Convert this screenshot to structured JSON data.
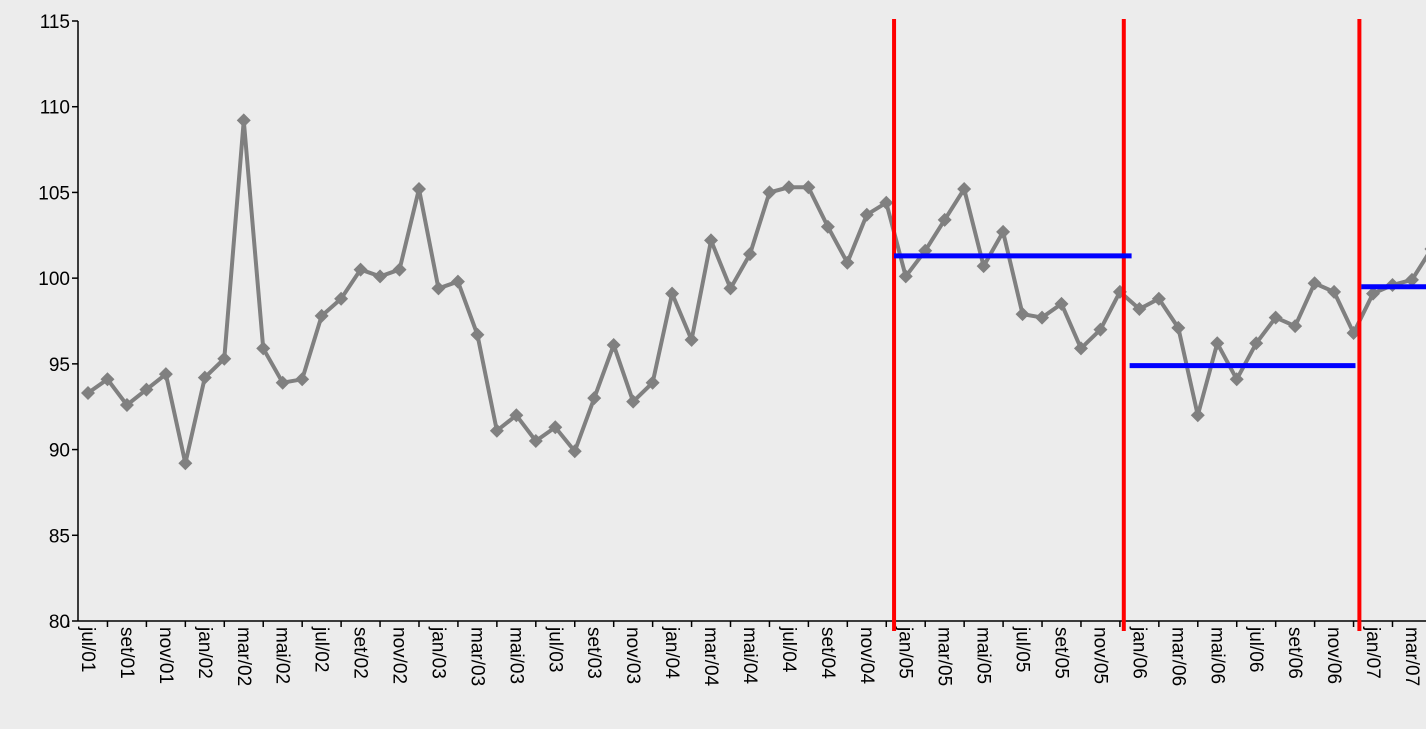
{
  "chart_data": {
    "type": "line",
    "categories": [
      "jul/01",
      null,
      "set/01",
      null,
      "nov/01",
      null,
      "jan/02",
      null,
      "mar/02",
      null,
      "mai/02",
      null,
      "jul/02",
      null,
      "set/02",
      null,
      "nov/02",
      null,
      "jan/03",
      null,
      "mar/03",
      null,
      "mai/03",
      null,
      "jul/03",
      null,
      "set/03",
      null,
      "nov/03",
      null,
      "jan/04",
      null,
      "mar/04",
      null,
      "mai/04",
      null,
      "jul/04",
      null,
      "set/04",
      null,
      "nov/04",
      null,
      "jan/05",
      null,
      "mar/05",
      null,
      "mai/05",
      null,
      "jul/05",
      null,
      "set/05",
      null,
      "nov/05",
      null,
      "jan/06",
      null,
      "mar/06",
      null,
      "mai/06",
      null,
      "jul/06",
      null,
      "set/06",
      null,
      "nov/06",
      null,
      "jan/07",
      null,
      "mar/07",
      null
    ],
    "values": [
      93.3,
      94.1,
      92.6,
      93.5,
      94.4,
      89.2,
      94.2,
      95.3,
      109.2,
      95.9,
      93.9,
      94.1,
      97.8,
      98.8,
      100.5,
      100.1,
      100.5,
      105.2,
      99.4,
      99.8,
      96.7,
      91.1,
      92.0,
      90.5,
      91.3,
      89.9,
      93.0,
      96.1,
      92.8,
      93.9,
      99.1,
      96.4,
      102.2,
      99.4,
      101.4,
      105.0,
      105.3,
      105.3,
      103.0,
      100.9,
      103.7,
      104.4,
      100.1,
      101.6,
      103.4,
      105.2,
      100.7,
      102.7,
      97.9,
      97.7,
      98.5,
      95.9,
      97.0,
      99.2,
      98.2,
      98.8,
      97.1,
      92.0,
      96.2,
      94.1,
      96.2,
      97.7,
      97.2,
      99.7,
      99.2,
      96.8,
      99.1,
      99.6,
      99.9,
      101.7
    ],
    "color": "#808080",
    "ylim": [
      80,
      115
    ],
    "yticks": [
      80,
      85,
      90,
      95,
      100,
      105,
      110,
      115
    ],
    "vertical_lines": {
      "x": [
        41.4,
        53.2,
        65.3
      ],
      "color": "#ff0000"
    },
    "level_lines": {
      "color": "#0000ff",
      "segments": [
        {
          "from": 41.4,
          "to": 53.6,
          "value": 101.3
        },
        {
          "from": 53.5,
          "to": 65.1,
          "value": 94.9
        },
        {
          "from": 65.4,
          "to": 70,
          "value": 99.5
        }
      ]
    }
  }
}
